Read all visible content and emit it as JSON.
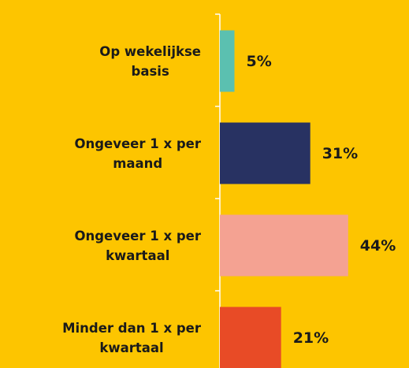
{
  "chart_data": {
    "type": "bar",
    "orientation": "horizontal",
    "categories": [
      "Op wekelijkse\nbasis",
      "Ongeveer 1 x per\nmaand",
      "Ongeveer 1 x per\nkwartaal",
      "Minder dan 1 x per\nkwartaal"
    ],
    "values": [
      5,
      31,
      44,
      21
    ],
    "value_labels": [
      "5%",
      "31%",
      "44%",
      "21%"
    ],
    "colors": [
      "#5bc0b0",
      "#283262",
      "#f4a292",
      "#e84b26"
    ]
  }
}
